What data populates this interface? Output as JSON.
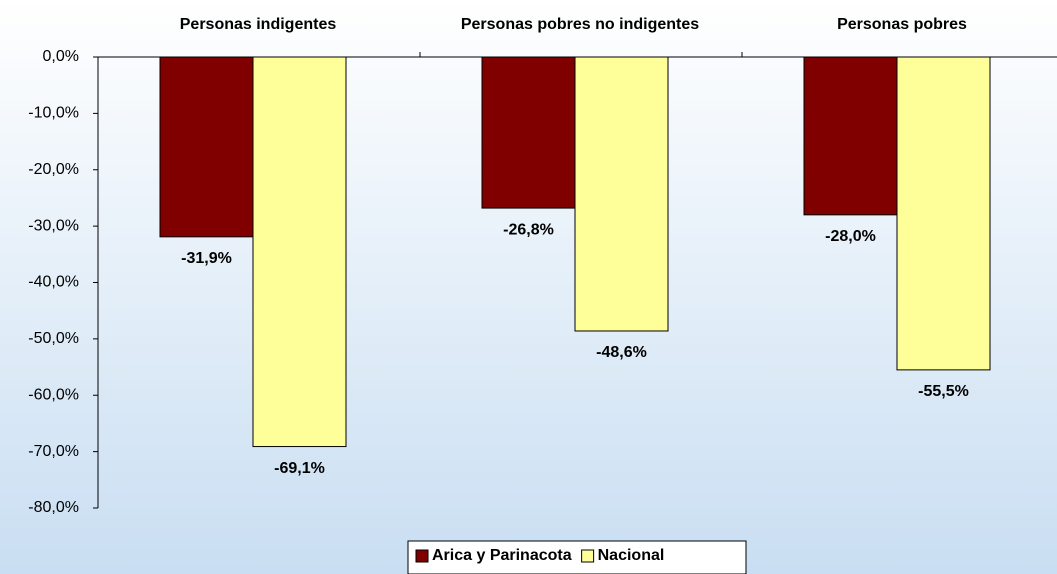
{
  "chart_data": {
    "type": "bar",
    "categories": [
      "Personas indigentes",
      "Personas pobres no indigentes",
      "Personas pobres"
    ],
    "series": [
      {
        "name": "Arica y Parinacota",
        "color": "#800000",
        "values": [
          -31.9,
          -26.8,
          -28.0
        ],
        "value_labels": [
          "-31,9%",
          "-26,8%",
          "-28,0%"
        ]
      },
      {
        "name": "Nacional",
        "color": "#ffff99",
        "values": [
          -69.1,
          -48.6,
          -55.5
        ],
        "value_labels": [
          "-69,1%",
          "-48,6%",
          "-55,5%"
        ]
      }
    ],
    "ylim": [
      -80,
      0
    ],
    "yticks": [
      {
        "value": 0,
        "label": "0,0%"
      },
      {
        "value": -10,
        "label": "-10,0%"
      },
      {
        "value": -20,
        "label": "-20,0%"
      },
      {
        "value": -30,
        "label": "-30,0%"
      },
      {
        "value": -40,
        "label": "-40,0%"
      },
      {
        "value": -50,
        "label": "-50,0%"
      },
      {
        "value": -60,
        "label": "-60,0%"
      },
      {
        "value": -70,
        "label": "-70,0%"
      },
      {
        "value": -80,
        "label": "-80,0%"
      }
    ],
    "legend": "bottom"
  }
}
